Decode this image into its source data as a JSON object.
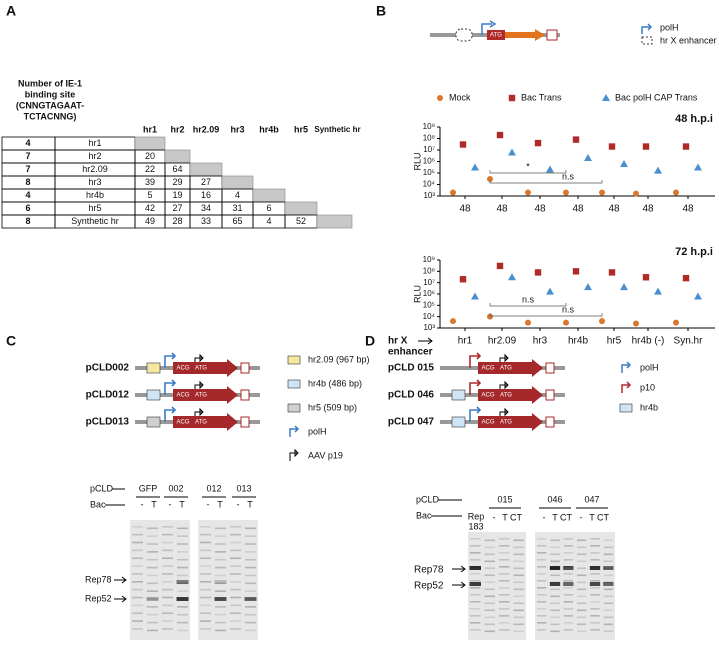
{
  "panel_a": {
    "label": "A",
    "header_lines": [
      "Number of IE-1",
      "binding site",
      "(CNNGTAGAAT-",
      "TCTACNNG)"
    ],
    "columns": [
      "hr1",
      "hr2",
      "hr2.09",
      "hr3",
      "hr4b",
      "hr5",
      "Synthetic hr"
    ],
    "rows": [
      {
        "count": 4,
        "name": "hr1",
        "cells": []
      },
      {
        "count": 7,
        "name": "hr2",
        "cells": [
          20
        ]
      },
      {
        "count": 7,
        "name": "hr2.09",
        "cells": [
          22,
          64
        ]
      },
      {
        "count": 8,
        "name": "hr3",
        "cells": [
          39,
          29,
          27
        ]
      },
      {
        "count": 4,
        "name": "hr4b",
        "cells": [
          5,
          19,
          16,
          4
        ]
      },
      {
        "count": 6,
        "name": "hr5",
        "cells": [
          42,
          27,
          34,
          31,
          6
        ]
      },
      {
        "count": 8,
        "name": "Synthetic hr",
        "cells": [
          49,
          28,
          33,
          65,
          4,
          52
        ]
      }
    ]
  },
  "panel_b": {
    "label": "B",
    "construct_text": "ATG",
    "legend": [
      "polH",
      "hr X enhancer"
    ]
  },
  "chart_data": [
    {
      "type": "scatter",
      "title": "48 h.p.i",
      "ylabel": "RLU",
      "log_scale": true,
      "categories": [
        "48",
        "48",
        "48",
        "48",
        "48",
        "48",
        "48"
      ],
      "series": [
        {
          "name": "Mock",
          "color": "#d9782d",
          "values": [
            2000,
            30000,
            2000,
            2000,
            2000,
            1600,
            2000
          ]
        },
        {
          "name": "Bac Trans",
          "color": "#b02a2a",
          "values": [
            30000000,
            200000000,
            40000000,
            80000000,
            20000000,
            20000000,
            20000000
          ]
        },
        {
          "name": "Bac polH CAP Trans",
          "color": "#4a8fd0",
          "values": [
            300000,
            6000000,
            200000,
            2000000,
            600000,
            160000,
            300000
          ]
        }
      ],
      "ylim": [
        1000,
        1000000000
      ],
      "yticks": [
        {
          "value": 1000,
          "label": "10³"
        },
        {
          "value": 10000,
          "label": "10⁴"
        },
        {
          "value": 100000,
          "label": "10⁵"
        },
        {
          "value": 1000000,
          "label": "10⁶"
        },
        {
          "value": 10000000,
          "label": "10⁷"
        },
        {
          "value": 100000000,
          "label": "10⁸"
        },
        {
          "value": 1000000000,
          "label": "10⁹"
        }
      ],
      "annotations": [
        "*",
        "n.s"
      ]
    },
    {
      "type": "scatter",
      "title": "72 h.p.i",
      "ylabel": "RLU",
      "xlabel_lines": [
        "hr X",
        "enhancer"
      ],
      "log_scale": true,
      "categories": [
        "hr1",
        "hr2.09",
        "hr3",
        "hr4b",
        "hr5",
        "hr4b (-)",
        "Syn.hr"
      ],
      "series": [
        {
          "color": "#d9782d",
          "values": [
            4000,
            10000,
            3000,
            3000,
            4000,
            2500,
            3000
          ]
        },
        {
          "color": "#b02a2a",
          "values": [
            20000000,
            300000000,
            80000000,
            100000000,
            80000000,
            30000000,
            25000000
          ]
        },
        {
          "color": "#4a8fd0",
          "values": [
            600000,
            30000000,
            1600000,
            4000000,
            4000000,
            1600000,
            600000
          ]
        }
      ],
      "ylim": [
        1000,
        1000000000
      ],
      "yticks": [
        {
          "value": 1000,
          "label": "10³"
        },
        {
          "value": 10000,
          "label": "10⁴"
        },
        {
          "value": 100000,
          "label": "10⁵"
        },
        {
          "value": 1000000,
          "label": "10⁶"
        },
        {
          "value": 10000000,
          "label": "10⁷"
        },
        {
          "value": 100000000,
          "label": "10⁸"
        },
        {
          "value": 1000000000,
          "label": "10⁹"
        }
      ],
      "annotations": [
        "n.s",
        "n.s"
      ]
    }
  ],
  "panel_c": {
    "label": "C",
    "constructs": [
      "pCLD002",
      "pCLD012",
      "pCLD013"
    ],
    "construct_texts": [
      "ACG",
      "ATG"
    ],
    "legend": [
      "hr2.09 (967 bp)",
      "hr4b (486 bp)",
      "hr5 (509 bp)",
      "polH",
      "AAV p19"
    ],
    "gel": {
      "row_labels": [
        "pCLD",
        "Bac"
      ],
      "groups": [
        "GFP",
        "002",
        "012",
        "013"
      ],
      "lanes": [
        "-",
        "T",
        "-",
        "T",
        "-",
        "T",
        "-",
        "T"
      ],
      "bands": [
        "Rep78",
        "Rep52"
      ]
    }
  },
  "panel_d": {
    "label": "D",
    "constructs": [
      "pCLD 015",
      "pCLD 046",
      "pCLD 047"
    ],
    "construct_texts": [
      "ACG",
      "ATG"
    ],
    "legend": [
      "polH",
      "p10",
      "hr4b"
    ],
    "gel": {
      "row_labels": [
        "pCLD",
        "Bac"
      ],
      "marker": [
        "Rep",
        "183"
      ],
      "groups": [
        "015",
        "046",
        "047"
      ],
      "lanes": [
        "-",
        "T",
        "CT",
        "-",
        "T",
        "CT",
        "-",
        "T",
        "CT"
      ],
      "bands": [
        "Rep78",
        "Rep52"
      ]
    }
  }
}
